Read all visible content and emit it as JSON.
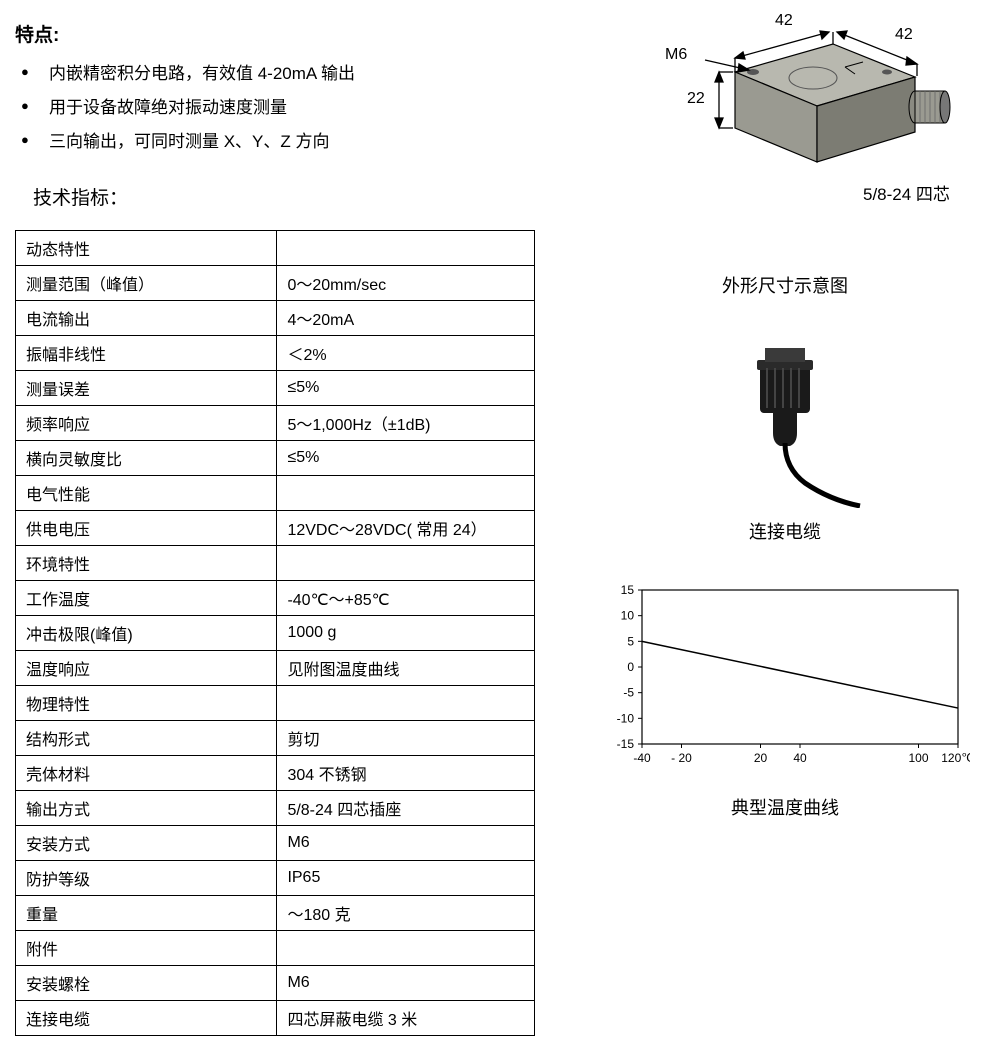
{
  "features": {
    "title": "特点:",
    "items": [
      "内嵌精密积分电路，有效值 4-20mA 输出",
      "用于设备故障绝对振动速度测量",
      "三向输出，可同时测量 X、Y、Z 方向"
    ]
  },
  "tech_title": "技术指标：",
  "spec_table": {
    "rows": [
      {
        "type": "section",
        "label": "动态特性",
        "value": ""
      },
      {
        "type": "data",
        "label": "测量范围（峰值）",
        "value": "0～20mm/sec"
      },
      {
        "type": "data",
        "label": "电流输出",
        "value": "4～20mA"
      },
      {
        "type": "data",
        "label": "振幅非线性",
        "value": "＜2%"
      },
      {
        "type": "data",
        "label": "测量误差",
        "value": "≤5%"
      },
      {
        "type": "data",
        "label": "频率响应",
        "value": "5～1,000Hz（±1dB)"
      },
      {
        "type": "data",
        "label": "横向灵敏度比",
        "value": "≤5%"
      },
      {
        "type": "section",
        "label": "电气性能",
        "value": ""
      },
      {
        "type": "data",
        "label": "供电电压",
        "value": "12VDC～28VDC( 常用 24）"
      },
      {
        "type": "section",
        "label": "环境特性",
        "value": ""
      },
      {
        "type": "data",
        "label": "工作温度",
        "value": "-40℃～+85℃"
      },
      {
        "type": "data",
        "label": "冲击极限(峰值)",
        "value": "1000 g"
      },
      {
        "type": "data",
        "label": "温度响应",
        "value": "见附图温度曲线"
      },
      {
        "type": "section",
        "label": "物理特性",
        "value": ""
      },
      {
        "type": "data",
        "label": "结构形式",
        "value": "剪切"
      },
      {
        "type": "data",
        "label": "壳体材料",
        "value": "304 不锈钢"
      },
      {
        "type": "data",
        "label": "输出方式",
        "value": "5/8-24  四芯插座"
      },
      {
        "type": "data",
        "label": "安装方式",
        "value": "M6"
      },
      {
        "type": "data",
        "label": "防护等级",
        "value": "IP65"
      },
      {
        "type": "data",
        "label": "重量",
        "value": "～180 克"
      },
      {
        "type": "section",
        "label": "附件",
        "value": ""
      },
      {
        "type": "data",
        "label": "安装螺栓",
        "value": "M6"
      },
      {
        "type": "data",
        "label": "连接电缆",
        "value": "四芯屏蔽电缆 3 米"
      }
    ]
  },
  "sensor_diagram": {
    "dim_top1": "42",
    "dim_top2": "42",
    "dim_left": "22",
    "thread_label": "M6",
    "connector_label": "5/8-24 四芯",
    "caption": "外形尺寸示意图",
    "body_fill": "#9a9a91",
    "body_stroke": "#000000",
    "top_fill": "#b8b8af",
    "side_fill": "#7c7c73"
  },
  "cable": {
    "caption": "连接电缆",
    "body_color": "#1a1a1a",
    "cable_color": "#000000"
  },
  "chart": {
    "caption": "典型温度曲线",
    "y_ticks": [
      -15,
      -10,
      -5,
      0,
      5,
      10,
      15
    ],
    "y_labels": [
      "-15",
      "-10",
      "-5",
      "0",
      "5",
      "10",
      "15"
    ],
    "x_ticks": [
      -40,
      -20,
      20,
      40,
      100,
      120
    ],
    "x_labels": [
      "-40",
      "- 20",
      "20",
      "40",
      "100",
      "120℃"
    ],
    "x_range": [
      -40,
      120
    ],
    "y_range": [
      -15,
      15
    ],
    "line_points": [
      [
        -40,
        5
      ],
      [
        120,
        -8
      ]
    ],
    "axis_color": "#000000",
    "grid_color": "#000000",
    "line_color": "#000000",
    "line_width": 1.5,
    "background": "#ffffff",
    "tick_fontsize": 12
  }
}
